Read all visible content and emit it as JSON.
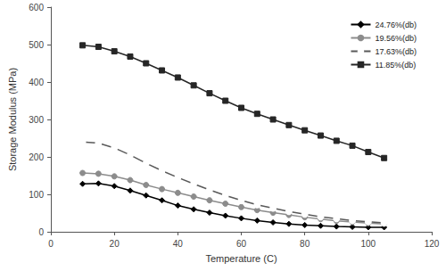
{
  "chart_data": {
    "type": "line",
    "x_label": "Temperature (C)",
    "y_label": "Storage Modulus (MPa)",
    "x": [
      10,
      15,
      20,
      25,
      30,
      35,
      40,
      45,
      50,
      55,
      60,
      65,
      70,
      75,
      80,
      85,
      90,
      95,
      100,
      105
    ],
    "series": [
      {
        "name": "24.76%(db)",
        "color": "#000000",
        "marker": "diamond",
        "values": [
          128,
          129,
          122,
          110,
          97,
          84,
          70,
          60,
          51,
          43,
          36,
          30,
          25,
          21,
          18,
          16,
          14,
          13,
          12,
          12
        ]
      },
      {
        "name": "19.56%(db)",
        "color": "#8c8c8c",
        "marker": "circle",
        "values": [
          157,
          155,
          148,
          138,
          125,
          114,
          104,
          94,
          84,
          75,
          66,
          58,
          51,
          45,
          39,
          34,
          29,
          26,
          23,
          21
        ]
      },
      {
        "name": "17.63%(db)",
        "color": "#595959",
        "marker": "open_circle",
        "values": [
          240,
          237,
          224,
          205,
          183,
          163,
          145,
          128,
          112,
          97,
          84,
          72,
          63,
          54,
          47,
          40,
          35,
          30,
          27,
          24
        ]
      },
      {
        "name": "11.85%(db)",
        "color": "#262626",
        "marker": "square",
        "values": [
          498,
          494,
          482,
          468,
          450,
          431,
          412,
          391,
          370,
          350,
          331,
          315,
          300,
          285,
          271,
          257,
          243,
          230,
          213,
          197
        ]
      }
    ],
    "xlim": [
      0,
      120
    ],
    "xticks": [
      0,
      20,
      40,
      60,
      80,
      100,
      120
    ],
    "ylim": [
      0,
      600
    ],
    "yticks": [
      0,
      100,
      200,
      300,
      400,
      500,
      600
    ],
    "grid": false,
    "legend": "top-right"
  }
}
